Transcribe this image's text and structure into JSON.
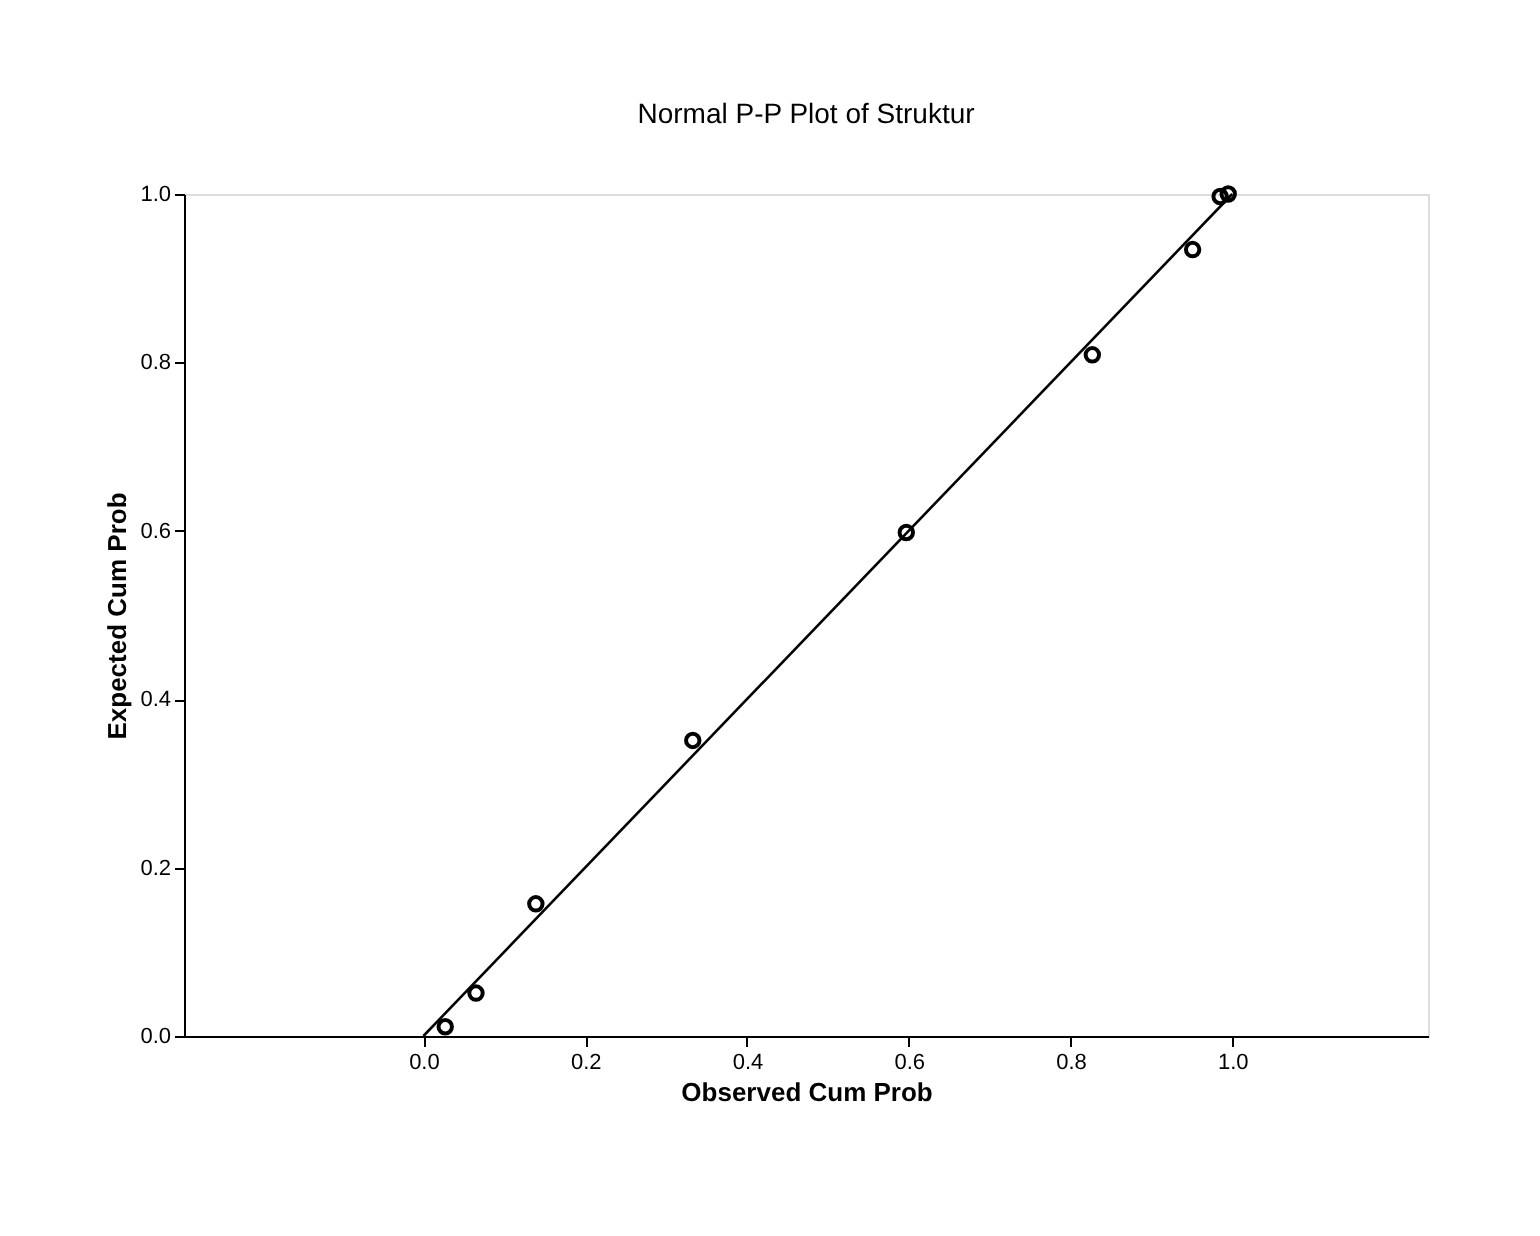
{
  "chart_data": {
    "type": "scatter",
    "title": "Normal P-P Plot of Struktur",
    "xlabel": "Observed Cum Prob",
    "ylabel": "Expected Cum Prob",
    "series": [
      {
        "color": "#000000",
        "marker": "circle",
        "x": [
          0.027,
          0.065,
          0.139,
          0.333,
          0.597,
          0.827,
          0.951,
          0.985,
          0.995
        ],
        "values": [
          0.011,
          0.051,
          0.157,
          0.351,
          0.598,
          0.809,
          0.934,
          0.997,
          1.0
        ]
      },
      {
        "type": "line",
        "color": "#000000",
        "marker": "none",
        "x": [
          0,
          1
        ],
        "values": [
          0,
          1
        ]
      }
    ],
    "xlim": [
      -0.296,
      1.242
    ],
    "ylim": [
      0,
      1
    ],
    "xticks": [
      {
        "value": 0,
        "label": "0.0"
      },
      {
        "value": 0.2,
        "label": "0.2"
      },
      {
        "value": 0.4,
        "label": "0.4"
      },
      {
        "value": 0.6,
        "label": "0.6"
      },
      {
        "value": 0.8,
        "label": "0.8"
      },
      {
        "value": 1,
        "label": "1.0"
      }
    ],
    "yticks": [
      {
        "value": 0,
        "label": "0.0"
      },
      {
        "value": 0.2,
        "label": "0.2"
      },
      {
        "value": 0.4,
        "label": "0.4"
      },
      {
        "value": 0.6,
        "label": "0.6"
      },
      {
        "value": 0.8,
        "label": "0.8"
      },
      {
        "value": 1,
        "label": "1.0"
      }
    ],
    "grid": false
  }
}
